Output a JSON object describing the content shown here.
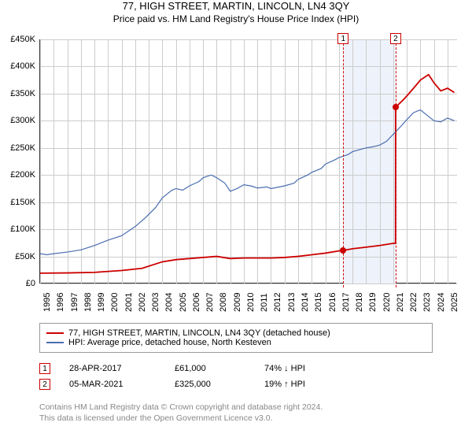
{
  "title": "77, HIGH STREET, MARTIN, LINCOLN, LN4 3QY",
  "subtitle": "Price paid vs. HM Land Registry's House Price Index (HPI)",
  "chart": {
    "type": "line",
    "background_color": "#ffffff",
    "grid_color": "#cccccc",
    "axis_color": "#333333",
    "xlim": [
      1995,
      2025.7
    ],
    "ylim": [
      0,
      450000
    ],
    "ytick_step": 50000,
    "yticks": [
      "£0",
      "£50K",
      "£100K",
      "£150K",
      "£200K",
      "£250K",
      "£300K",
      "£350K",
      "£400K",
      "£450K"
    ],
    "xticks": [
      1995,
      1996,
      1997,
      1998,
      1999,
      2000,
      2001,
      2002,
      2003,
      2004,
      2005,
      2006,
      2007,
      2008,
      2009,
      2010,
      2011,
      2012,
      2013,
      2014,
      2015,
      2016,
      2017,
      2018,
      2019,
      2020,
      2021,
      2022,
      2023,
      2024,
      2025
    ],
    "title_fontsize": 13,
    "label_fontsize": 11,
    "highlight_band": {
      "start": 2017.32,
      "end": 2021.18,
      "color": "#eef2fa"
    },
    "markers": [
      {
        "label": "1",
        "x": 2017.32,
        "y": 61000
      },
      {
        "label": "2",
        "x": 2021.18,
        "y": 325000
      }
    ],
    "marker_line_color": "#cc0000",
    "series": [
      {
        "name": "price_paid",
        "color": "#cc0000",
        "line_width": 1.8,
        "points": [
          [
            1995,
            19000
          ],
          [
            1997,
            19500
          ],
          [
            1999,
            20500
          ],
          [
            2001,
            24000
          ],
          [
            2002.5,
            28000
          ],
          [
            2004,
            40000
          ],
          [
            2005,
            44000
          ],
          [
            2006,
            46000
          ],
          [
            2007,
            48000
          ],
          [
            2008,
            50000
          ],
          [
            2009,
            46000
          ],
          [
            2010,
            47000
          ],
          [
            2011,
            47000
          ],
          [
            2012,
            47000
          ],
          [
            2013,
            48000
          ],
          [
            2014,
            50000
          ],
          [
            2015,
            53000
          ],
          [
            2016,
            56000
          ],
          [
            2017,
            60000
          ],
          [
            2017.32,
            61000
          ],
          [
            2018,
            64000
          ],
          [
            2019,
            67000
          ],
          [
            2020,
            70000
          ],
          [
            2021,
            74000
          ],
          [
            2021.17,
            74000
          ],
          [
            2021.18,
            325000
          ],
          [
            2021.8,
            340000
          ],
          [
            2022.5,
            360000
          ],
          [
            2023,
            375000
          ],
          [
            2023.6,
            385000
          ],
          [
            2024,
            370000
          ],
          [
            2024.5,
            355000
          ],
          [
            2025,
            360000
          ],
          [
            2025.5,
            352000
          ]
        ]
      },
      {
        "name": "hpi",
        "color": "#4a6db0",
        "line_width": 1.2,
        "points": [
          [
            1995,
            55000
          ],
          [
            1995.5,
            53000
          ],
          [
            1996,
            55000
          ],
          [
            1997,
            58000
          ],
          [
            1998,
            62000
          ],
          [
            1999,
            70000
          ],
          [
            2000,
            80000
          ],
          [
            2001,
            88000
          ],
          [
            2002,
            105000
          ],
          [
            2002.7,
            120000
          ],
          [
            2003.5,
            140000
          ],
          [
            2004,
            158000
          ],
          [
            2004.7,
            172000
          ],
          [
            2005,
            175000
          ],
          [
            2005.5,
            172000
          ],
          [
            2006,
            180000
          ],
          [
            2006.7,
            188000
          ],
          [
            2007,
            195000
          ],
          [
            2007.6,
            200000
          ],
          [
            2008,
            195000
          ],
          [
            2008.6,
            185000
          ],
          [
            2009,
            170000
          ],
          [
            2009.5,
            175000
          ],
          [
            2010,
            182000
          ],
          [
            2010.5,
            180000
          ],
          [
            2011,
            176000
          ],
          [
            2011.7,
            178000
          ],
          [
            2012,
            175000
          ],
          [
            2012.6,
            178000
          ],
          [
            2013,
            180000
          ],
          [
            2013.7,
            185000
          ],
          [
            2014,
            192000
          ],
          [
            2014.7,
            200000
          ],
          [
            2015,
            205000
          ],
          [
            2015.7,
            212000
          ],
          [
            2016,
            220000
          ],
          [
            2016.7,
            228000
          ],
          [
            2017,
            232000
          ],
          [
            2017.7,
            238000
          ],
          [
            2018,
            243000
          ],
          [
            2018.7,
            248000
          ],
          [
            2019,
            250000
          ],
          [
            2019.5,
            252000
          ],
          [
            2020,
            255000
          ],
          [
            2020.5,
            262000
          ],
          [
            2021,
            275000
          ],
          [
            2021.5,
            288000
          ],
          [
            2022,
            302000
          ],
          [
            2022.5,
            315000
          ],
          [
            2023,
            320000
          ],
          [
            2023.5,
            310000
          ],
          [
            2024,
            300000
          ],
          [
            2024.5,
            298000
          ],
          [
            2025,
            305000
          ],
          [
            2025.5,
            300000
          ]
        ]
      }
    ]
  },
  "legend": {
    "items": [
      {
        "color": "#cc0000",
        "label": "77, HIGH STREET, MARTIN, LINCOLN, LN4 3QY (detached house)"
      },
      {
        "color": "#4a6db0",
        "label": "HPI: Average price, detached house, North Kesteven"
      }
    ]
  },
  "events": [
    {
      "n": "1",
      "date": "28-APR-2017",
      "price": "£61,000",
      "delta": "74% ↓ HPI"
    },
    {
      "n": "2",
      "date": "05-MAR-2021",
      "price": "£325,000",
      "delta": "19% ↑ HPI"
    }
  ],
  "footer": {
    "l1": "Contains HM Land Registry data © Crown copyright and database right 2024.",
    "l2": "This data is licensed under the Open Government Licence v3.0."
  }
}
